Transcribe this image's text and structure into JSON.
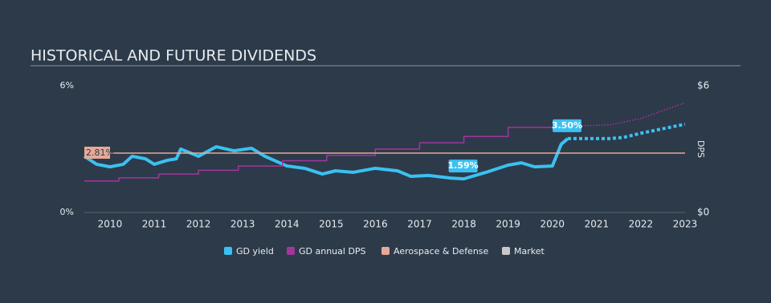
{
  "chart_data": {
    "type": "line",
    "title": "HISTORICAL AND FUTURE DIVIDENDS",
    "xlim": [
      2009.42,
      2023
    ],
    "xticks": [
      2010,
      2011,
      2012,
      2013,
      2014,
      2015,
      2016,
      2017,
      2018,
      2019,
      2020,
      2021,
      2022,
      2023
    ],
    "ylim": [
      0,
      6
    ],
    "yticks": [
      {
        "value": 0,
        "label": "0%"
      },
      {
        "value": 6,
        "label": "6%"
      }
    ],
    "y2lim": [
      0,
      6
    ],
    "y2ticks": [
      {
        "value": 0,
        "label": "$0"
      },
      {
        "value": 6,
        "label": "$6"
      }
    ],
    "y2label": "DPS",
    "series": [
      {
        "name": "GD yield",
        "color": "#3bc1f1",
        "x": [
          2009.42,
          2009.7,
          2010.0,
          2010.3,
          2010.5,
          2010.8,
          2011.0,
          2011.3,
          2011.5,
          2011.6,
          2012.0,
          2012.4,
          2012.8,
          2013.2,
          2013.5,
          2014.0,
          2014.4,
          2014.8,
          2015.1,
          2015.5,
          2016.0,
          2016.5,
          2016.8,
          2017.2,
          2017.7,
          2018.0,
          2018.5,
          2019.0,
          2019.3,
          2019.6,
          2020.0,
          2020.2,
          2020.35
        ],
        "values": [
          2.66,
          2.28,
          2.16,
          2.28,
          2.66,
          2.54,
          2.28,
          2.47,
          2.54,
          3.0,
          2.66,
          3.11,
          2.92,
          3.04,
          2.66,
          2.2,
          2.09,
          1.82,
          1.97,
          1.9,
          2.09,
          1.97,
          1.71,
          1.75,
          1.63,
          1.59,
          1.9,
          2.24,
          2.35,
          2.16,
          2.2,
          3.23,
          3.5
        ],
        "forecast": {
          "x": [
            2020.35,
            2021.3,
            2021.6,
            2022.0,
            2023.0
          ],
          "values": [
            3.5,
            3.5,
            3.55,
            3.75,
            4.18
          ]
        }
      },
      {
        "name": "GD annual DPS",
        "color": "#a3369b",
        "axis": "y2",
        "step": true,
        "x": [
          2009.42,
          2010.2,
          2011.1,
          2012.0,
          2012.9,
          2013.9,
          2014.9,
          2016.0,
          2017.0,
          2018.0,
          2019.0,
          2020.1,
          2020.35
        ],
        "values": [
          1.49,
          1.64,
          1.82,
          2.0,
          2.2,
          2.45,
          2.7,
          3.0,
          3.3,
          3.6,
          4.03,
          4.08,
          4.08
        ],
        "forecast": {
          "x": [
            2020.35,
            2021.3,
            2022.0,
            2023.0
          ],
          "values": [
            4.08,
            4.15,
            4.45,
            5.2
          ]
        }
      },
      {
        "name": "Aerospace & Defense",
        "color": "#e6a997",
        "x": [
          2009.42,
          2023
        ],
        "values": [
          2.81,
          2.81
        ],
        "value_labels": [
          "2.81%",
          null
        ]
      },
      {
        "name": "Market",
        "color": "#c8c8c8",
        "x": [],
        "values": []
      }
    ],
    "annotations": [
      {
        "text": "1.59%",
        "x": 2018.0,
        "value": 1.59
      },
      {
        "text": "3.50%",
        "x": 2020.35,
        "value": 3.5
      }
    ]
  }
}
